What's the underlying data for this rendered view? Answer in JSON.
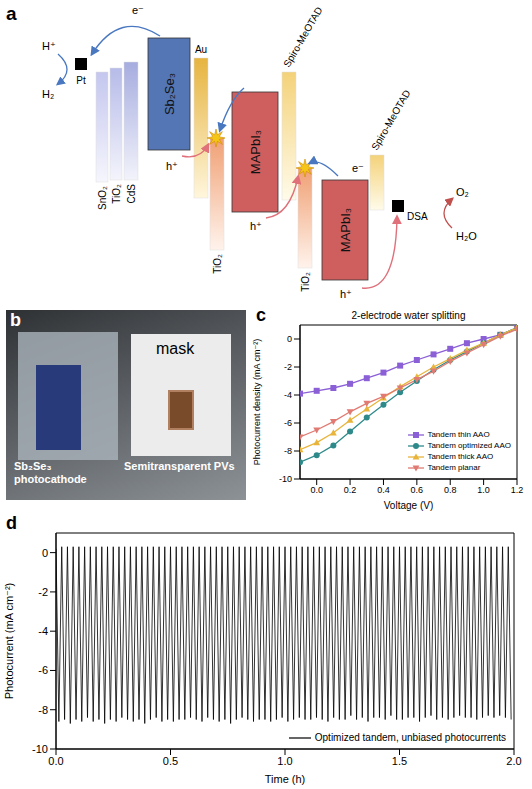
{
  "diagram": {
    "panel_label": "a",
    "carriers": {
      "electron": "e⁻",
      "hole": "h⁺"
    },
    "cathode_reaction": {
      "reactant": "H⁺",
      "product": "H₂"
    },
    "anode_reaction": {
      "reactant": "H₂O",
      "product": "O₂"
    },
    "layers": [
      "Pt",
      "SnO₂",
      "TiO₂",
      "CdS",
      "Sb₂Se₃",
      "Au",
      "TiO₂",
      "MAPbI₃",
      "Spiro-MeOTAD",
      "TiO₂",
      "MAPbI₃",
      "Spiro-MeOTAD",
      "DSA"
    ]
  },
  "photo": {
    "panel_label": "b",
    "mask": "mask",
    "photocathode": "Sb₂Se₃ photocathode",
    "pv": "Semitransparent PVs"
  },
  "chart_data": [
    {
      "panel_label": "c",
      "type": "line",
      "title": "2-electrode water splitting",
      "x_label": "Voltage (V)",
      "y_label": "Photocurrent density (mA cm⁻²)",
      "x": [
        -0.1,
        0,
        0.1,
        0.2,
        0.3,
        0.4,
        0.5,
        0.6,
        0.7,
        0.8,
        0.9,
        1.0,
        1.1,
        1.2
      ],
      "series": [
        {
          "name": "Tandem thin AAO",
          "color": "#8b5fd6",
          "marker": "square",
          "values": [
            -3.9,
            -3.7,
            -3.5,
            -3.2,
            -2.8,
            -2.4,
            -1.9,
            -1.5,
            -1.1,
            -0.7,
            -0.3,
            0.0,
            0.3,
            0.8
          ]
        },
        {
          "name": "Tandem optimized AAO",
          "color": "#2e8a8a",
          "marker": "circle",
          "values": [
            -8.8,
            -8.3,
            -7.6,
            -6.6,
            -5.6,
            -4.7,
            -3.8,
            -3.0,
            -2.2,
            -1.5,
            -0.9,
            -0.3,
            0.3,
            0.8
          ]
        },
        {
          "name": "Tandem thick AAO",
          "color": "#e8b43a",
          "marker": "triangle",
          "values": [
            -7.9,
            -7.4,
            -6.7,
            -5.8,
            -5.0,
            -4.2,
            -3.4,
            -2.7,
            -2.0,
            -1.4,
            -0.8,
            -0.3,
            0.3,
            0.8
          ]
        },
        {
          "name": "Tandem planar",
          "color": "#e07a72",
          "marker": "triangle-down",
          "values": [
            -7.0,
            -6.5,
            -5.9,
            -5.2,
            -4.6,
            -4.1,
            -3.5,
            -2.9,
            -2.3,
            -1.6,
            -1.0,
            -0.4,
            0.2,
            0.7
          ]
        }
      ],
      "xlim": [
        -0.1,
        1.2
      ],
      "xticks": [
        {
          "value": 0,
          "label": "0.0"
        },
        {
          "value": 0.2,
          "label": "0.2"
        },
        {
          "value": 0.4,
          "label": "0.4"
        },
        {
          "value": 0.6,
          "label": "0.6"
        },
        {
          "value": 0.8,
          "label": "0.8"
        },
        {
          "value": 1.0,
          "label": "1.0"
        },
        {
          "value": 1.2,
          "label": "1.2"
        }
      ],
      "ylim": [
        -10,
        1
      ],
      "yticks": [
        -10,
        -8,
        -6,
        -4,
        -2,
        0
      ],
      "legend": "lower right"
    },
    {
      "panel_label": "d",
      "type": "line",
      "x_label": "Time (h)",
      "y_label": "Photocurrent (mA cm⁻²)",
      "x": [
        0,
        0.0125,
        0.025,
        0.0375,
        0.05,
        0.0625,
        0.075,
        0.0875,
        0.1,
        0.1125,
        0.125,
        0.1375,
        0.15,
        0.1625,
        0.175,
        0.1875,
        0.2,
        0.2125,
        0.225,
        0.2375,
        0.25,
        0.2625,
        0.275,
        0.2875,
        0.3,
        0.3125,
        0.325,
        0.3375,
        0.35,
        0.3625,
        0.375,
        0.3875,
        0.4,
        0.4125,
        0.425,
        0.4375,
        0.45,
        0.4625,
        0.475,
        0.4875,
        0.5,
        0.5125,
        0.525,
        0.5375,
        0.55,
        0.5625,
        0.575,
        0.5875,
        0.6,
        0.6125,
        0.625,
        0.6375,
        0.65,
        0.6625,
        0.675,
        0.6875,
        0.7,
        0.7125,
        0.725,
        0.7375,
        0.75,
        0.7625,
        0.775,
        0.7875,
        0.8,
        0.8125,
        0.825,
        0.8375,
        0.85,
        0.8625,
        0.875,
        0.8875,
        0.9,
        0.9125,
        0.925,
        0.9375,
        0.95,
        0.9625,
        0.975,
        0.9875,
        1.0,
        1.0125,
        1.025,
        1.0375,
        1.05,
        1.0625,
        1.075,
        1.0875,
        1.1,
        1.1125,
        1.125,
        1.1375,
        1.15,
        1.1625,
        1.175,
        1.1875,
        1.2,
        1.2125,
        1.225,
        1.2375,
        1.25,
        1.2625,
        1.275,
        1.2875,
        1.3,
        1.3125,
        1.325,
        1.3375,
        1.35,
        1.3625,
        1.375,
        1.3875,
        1.4,
        1.4125,
        1.425,
        1.4375,
        1.45,
        1.4625,
        1.475,
        1.4875,
        1.5,
        1.5125,
        1.525,
        1.5375,
        1.55,
        1.5625,
        1.575,
        1.5875,
        1.6,
        1.6125,
        1.625,
        1.6375,
        1.65,
        1.6625,
        1.675,
        1.6875,
        1.7,
        1.7125,
        1.725,
        1.7375,
        1.75,
        1.7625,
        1.775,
        1.7875,
        1.8,
        1.8125,
        1.825,
        1.8375,
        1.85,
        1.8625,
        1.875,
        1.8875,
        1.9,
        1.9125,
        1.925,
        1.9375,
        1.95,
        1.9625,
        1.975,
        1.9875
      ],
      "series": [
        {
          "name": "Optimized tandem, unbiased photocurrents",
          "color": "#000000",
          "values": [
            0.2,
            -8.6,
            0.3,
            -8.5,
            0.3,
            -8.7,
            0.3,
            -8.5,
            0.3,
            -8.6,
            0.3,
            -8.4,
            0.3,
            -8.6,
            0.3,
            -8.5,
            0.3,
            -8.7,
            0.3,
            -8.5,
            0.3,
            -8.6,
            0.3,
            -8.4,
            0.3,
            -8.5,
            0.3,
            -8.6,
            0.3,
            -8.5,
            0.3,
            -8.7,
            0.3,
            -8.5,
            0.3,
            -8.4,
            0.3,
            -8.6,
            0.3,
            -8.5,
            0.3,
            -8.6,
            0.3,
            -8.5,
            0.3,
            -8.5,
            0.3,
            -8.4,
            0.3,
            -8.5,
            0.3,
            -8.6,
            0.3,
            -8.4,
            0.3,
            -8.5,
            0.3,
            -8.6,
            0.3,
            -8.5,
            0.3,
            -8.7,
            0.3,
            -8.5,
            0.3,
            -8.4,
            0.3,
            -8.5,
            0.3,
            -8.6,
            0.3,
            -8.5,
            0.3,
            -8.5,
            0.3,
            -8.6,
            0.3,
            -8.5,
            0.3,
            -8.4,
            0.3,
            -8.6,
            0.3,
            -8.5,
            0.3,
            -8.4,
            0.3,
            -8.5,
            0.3,
            -8.5,
            0.3,
            -8.4,
            0.3,
            -8.5,
            0.3,
            -8.6,
            0.3,
            -8.4,
            0.3,
            -8.5,
            0.3,
            -8.5,
            0.3,
            -8.3,
            0.3,
            -8.5,
            0.3,
            -8.4,
            0.3,
            -8.6,
            0.3,
            -8.4,
            0.3,
            -8.4,
            0.3,
            -8.5,
            0.3,
            -8.3,
            0.3,
            -8.5,
            0.3,
            -8.5,
            0.3,
            -8.4,
            0.3,
            -8.4,
            0.3,
            -8.6,
            0.3,
            -8.4,
            0.3,
            -8.3,
            0.3,
            -8.5,
            0.3,
            -8.4,
            0.3,
            -8.5,
            0.3,
            -8.4,
            0.3,
            -8.3,
            0.3,
            -8.4,
            0.3,
            -8.4,
            0.3,
            -8.5,
            0.3,
            -8.4,
            0.3,
            -8.3,
            0.3,
            -8.4,
            0.3,
            -8.3,
            0.3,
            -8.4,
            0.3,
            -8.5
          ]
        }
      ],
      "xlim": [
        0,
        2
      ],
      "xticks": [
        {
          "value": 0,
          "label": "0.0"
        },
        {
          "value": 0.5,
          "label": "0.5"
        },
        {
          "value": 1,
          "label": "1.0"
        },
        {
          "value": 1.5,
          "label": "1.5"
        },
        {
          "value": 2,
          "label": "2.0"
        }
      ],
      "ylim": [
        -10,
        1
      ],
      "yticks": [
        -10,
        -8,
        -6,
        -4,
        -2,
        0
      ],
      "legend": "lower right"
    }
  ]
}
